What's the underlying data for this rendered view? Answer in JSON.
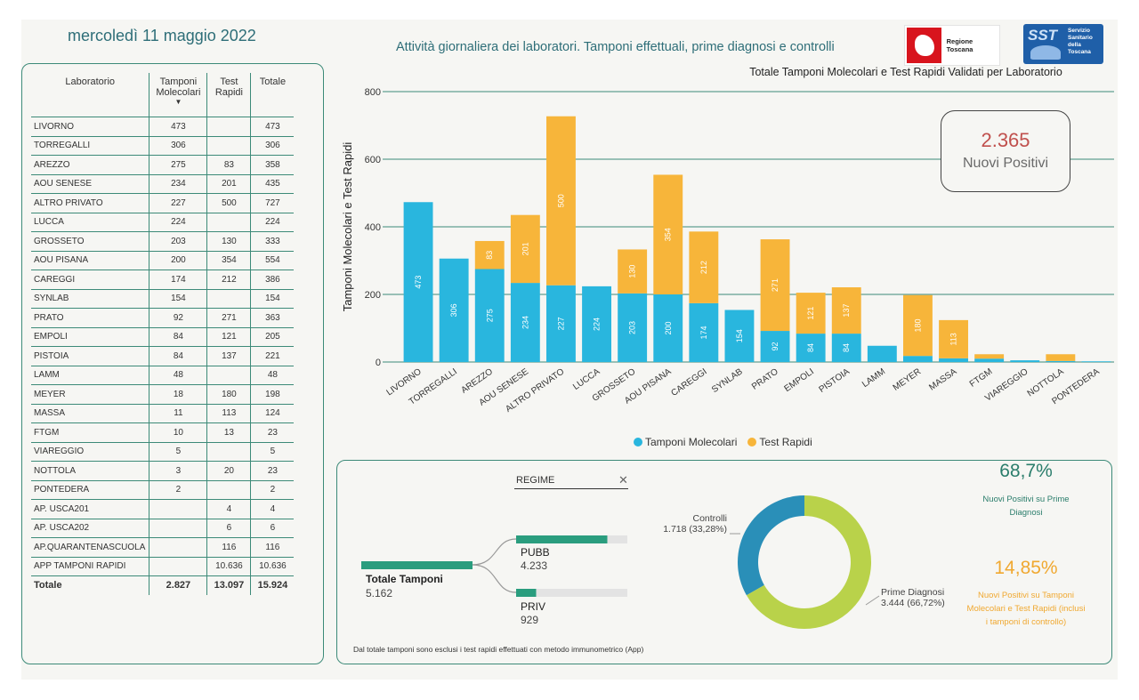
{
  "header": {
    "date": "mercoledì 11 maggio 2022",
    "title": "Attività giornaliera dei laboratori. Tamponi effettuali, prime diagnosi e controlli",
    "logo_left_text": "Regione Toscana",
    "logo_right_big": "SST",
    "logo_right_small": "Servizio Sanitario della Toscana"
  },
  "table": {
    "headers": [
      "Laboratorio",
      "Tamponi Molecolari",
      "Test Rapidi",
      "Totale"
    ],
    "rows": [
      [
        "LIVORNO",
        "473",
        "",
        "473"
      ],
      [
        "TORREGALLI",
        "306",
        "",
        "306"
      ],
      [
        "AREZZO",
        "275",
        "83",
        "358"
      ],
      [
        "AOU SENESE",
        "234",
        "201",
        "435"
      ],
      [
        "ALTRO PRIVATO",
        "227",
        "500",
        "727"
      ],
      [
        "LUCCA",
        "224",
        "",
        "224"
      ],
      [
        "GROSSETO",
        "203",
        "130",
        "333"
      ],
      [
        "AOU PISANA",
        "200",
        "354",
        "554"
      ],
      [
        "CAREGGI",
        "174",
        "212",
        "386"
      ],
      [
        "SYNLAB",
        "154",
        "",
        "154"
      ],
      [
        "PRATO",
        "92",
        "271",
        "363"
      ],
      [
        "EMPOLI",
        "84",
        "121",
        "205"
      ],
      [
        "PISTOIA",
        "84",
        "137",
        "221"
      ],
      [
        "LAMM",
        "48",
        "",
        "48"
      ],
      [
        "MEYER",
        "18",
        "180",
        "198"
      ],
      [
        "MASSA",
        "11",
        "113",
        "124"
      ],
      [
        "FTGM",
        "10",
        "13",
        "23"
      ],
      [
        "VIAREGGIO",
        "5",
        "",
        "5"
      ],
      [
        "NOTTOLA",
        "3",
        "20",
        "23"
      ],
      [
        "PONTEDERA",
        "2",
        "",
        "2"
      ],
      [
        "AP. USCA201",
        "",
        "4",
        "4"
      ],
      [
        "AP. USCA202",
        "",
        "6",
        "6"
      ],
      [
        "AP.QUARANTENASCUOLA",
        "",
        "116",
        "116"
      ],
      [
        "APP TAMPONI RAPIDI",
        "",
        "10.636",
        "10.636"
      ]
    ],
    "total": [
      "Totale",
      "2.827",
      "13.097",
      "15.924"
    ]
  },
  "chart_data": [
    {
      "type": "bar",
      "stacked": true,
      "title": "Totale Tamponi Molecolari e Test Rapidi Validati per Laboratorio",
      "ylabel": "Tamponi Molecolari e Test Rapidi",
      "xlabel": "",
      "ylim": [
        0,
        800
      ],
      "yticks": [
        0,
        200,
        400,
        600,
        800
      ],
      "grid": true,
      "legend_position": "bottom",
      "categories": [
        "LIVORNO",
        "TORREGALLI",
        "AREZZO",
        "AOU SENESE",
        "ALTRO PRIVATO",
        "LUCCA",
        "GROSSETO",
        "AOU PISANA",
        "CAREGGI",
        "SYNLAB",
        "PRATO",
        "EMPOLI",
        "PISTOIA",
        "LAMM",
        "MEYER",
        "MASSA",
        "FTGM",
        "VIAREGGIO",
        "NOTTOLA",
        "PONTEDERA"
      ],
      "series": [
        {
          "name": "Tamponi Molecolari",
          "color": "#29b6de",
          "values": [
            473,
            306,
            275,
            234,
            227,
            224,
            203,
            200,
            174,
            154,
            92,
            84,
            84,
            48,
            18,
            11,
            10,
            5,
            3,
            2
          ]
        },
        {
          "name": "Test Rapidi",
          "color": "#f7b53a",
          "values": [
            0,
            0,
            83,
            201,
            500,
            0,
            130,
            354,
            212,
            0,
            271,
            121,
            137,
            0,
            180,
            113,
            13,
            0,
            20,
            0
          ]
        }
      ]
    },
    {
      "type": "pie",
      "donut": true,
      "slices": [
        {
          "name": "Controlli",
          "value": 1718,
          "label": "1.718 (33,28%)",
          "color": "#2a8fb8"
        },
        {
          "name": "Prime Diagnosi",
          "value": 3444,
          "label": "3.444 (66,72%)",
          "color": "#b9d24a"
        }
      ]
    }
  ],
  "kpi": {
    "value": "2.365",
    "label": "Nuovi Positivi"
  },
  "regime": {
    "filter_label": "REGIME",
    "clear_icon": "close-icon",
    "total_label": "Totale Tamponi",
    "total_value": "5.162",
    "total_num": 5162,
    "pubb_label": "PUBB",
    "pubb_value": "4.233",
    "pubb_num": 4233,
    "priv_label": "PRIV",
    "priv_value": "929",
    "priv_num": 929,
    "note": "Dal totale tamponi sono esclusi i test rapidi effettuati con metodo immunometrico (App)"
  },
  "indicators": {
    "pct1": "68,7%",
    "pct1_desc": "Nuovi Positivi su Prime Diagnosi",
    "pct2": "14,85%",
    "pct2_desc": "Nuovi Positivi su Tamponi Molecolari e Test Rapidi (inclusi i tamponi di controllo)",
    "color1": "#2a7d6b",
    "color2": "#f0a830"
  }
}
